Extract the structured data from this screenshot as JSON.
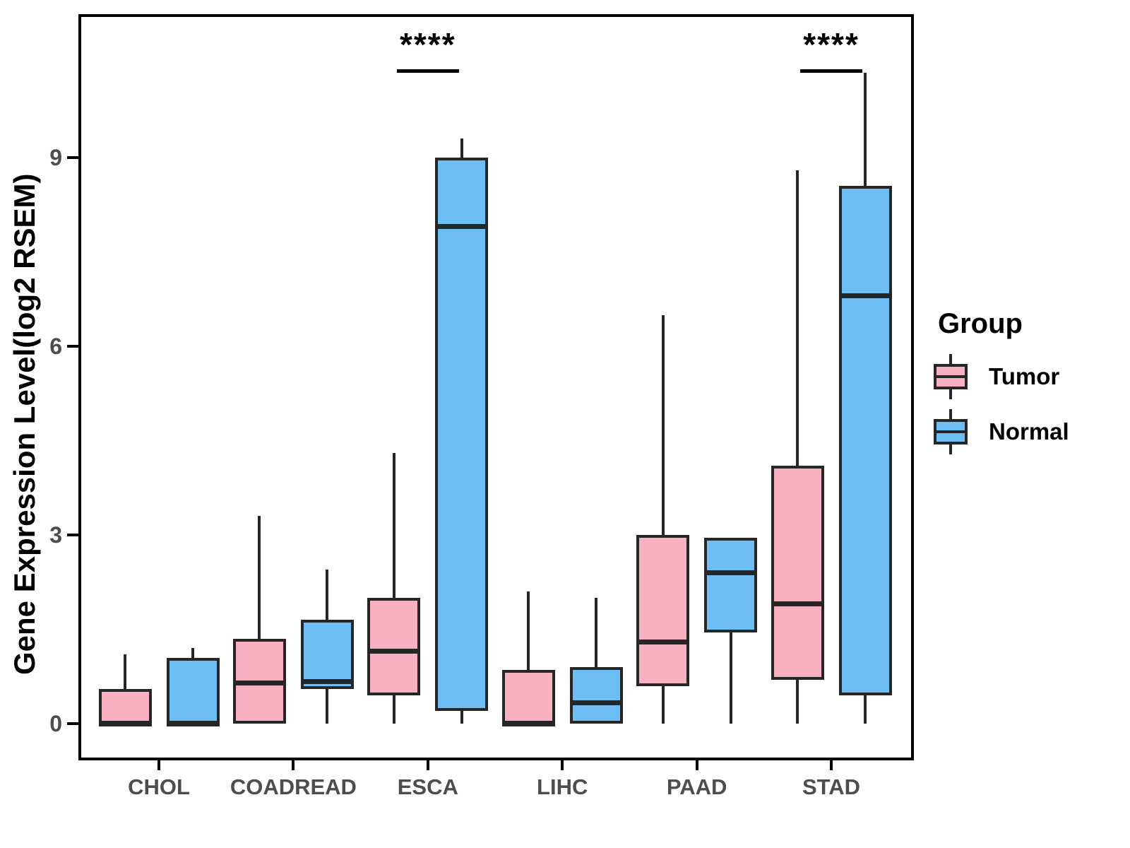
{
  "chart_data": {
    "type": "boxplot",
    "title": "",
    "xlabel": "",
    "ylabel": "Gene Expression Level(log2 RSEM)",
    "categories": [
      "CHOL",
      "COADREAD",
      "ESCA",
      "LIHC",
      "PAAD",
      "STAD"
    ],
    "yticks": [
      0,
      3,
      6,
      9
    ],
    "ylim": [
      -0.5,
      11.3
    ],
    "grid": false,
    "legend_position": "right",
    "legend": {
      "title": "Group",
      "entries": [
        {
          "label": "Tumor",
          "color": "#F9B1C1"
        },
        {
          "label": "Normal",
          "color": "#6EBEF6"
        }
      ]
    },
    "colors": {
      "tumor_fill": "#F9B1C1",
      "normal_fill": "#6EBEF6",
      "stroke": "#262626",
      "axis_text": "#4d4d4d",
      "panel_border": "#000000"
    },
    "series": [
      {
        "name": "Tumor",
        "color": "#F9B1C1",
        "boxes": [
          {
            "category": "CHOL",
            "low": 0,
            "q1": 0,
            "median": 0,
            "q3": 0.55,
            "high": 1.1
          },
          {
            "category": "COADREAD",
            "low": 0,
            "q1": 0,
            "median": 0.65,
            "q3": 1.35,
            "high": 3.3
          },
          {
            "category": "ESCA",
            "low": 0,
            "q1": 0.45,
            "median": 1.15,
            "q3": 2.0,
            "high": 4.3
          },
          {
            "category": "LIHC",
            "low": 0,
            "q1": 0,
            "median": 0,
            "q3": 0.85,
            "high": 2.1
          },
          {
            "category": "PAAD",
            "low": 0,
            "q1": 0.6,
            "median": 1.3,
            "q3": 3.0,
            "high": 6.5
          },
          {
            "category": "STAD",
            "low": 0,
            "q1": 0.7,
            "median": 1.9,
            "q3": 4.1,
            "high": 8.8
          }
        ]
      },
      {
        "name": "Normal",
        "color": "#6EBEF6",
        "boxes": [
          {
            "category": "CHOL",
            "low": 0,
            "q1": 0,
            "median": 0,
            "q3": 1.05,
            "high": 1.2
          },
          {
            "category": "COADREAD",
            "low": 0,
            "q1": 0.55,
            "median": 0.67,
            "q3": 1.65,
            "high": 2.45
          },
          {
            "category": "ESCA",
            "low": 0,
            "q1": 0.2,
            "median": 7.9,
            "q3": 9.0,
            "high": 9.3
          },
          {
            "category": "LIHC",
            "low": 0,
            "q1": 0,
            "median": 0.33,
            "q3": 0.9,
            "high": 2.0
          },
          {
            "category": "PAAD",
            "low": 0,
            "q1": 1.45,
            "median": 2.4,
            "q3": 2.95,
            "high": 2.95
          },
          {
            "category": "STAD",
            "low": 0,
            "q1": 0.45,
            "median": 6.8,
            "q3": 8.55,
            "high": 10.35
          }
        ]
      }
    ],
    "annotations": [
      {
        "category": "ESCA",
        "label": "****",
        "underline": true
      },
      {
        "category": "STAD",
        "label": "****",
        "underline": true
      }
    ]
  }
}
